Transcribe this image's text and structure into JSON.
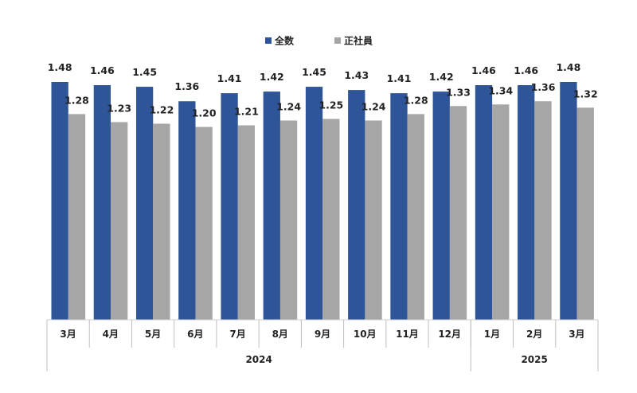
{
  "chart_data": {
    "type": "bar",
    "categories": [
      "3月",
      "4月",
      "5月",
      "6月",
      "7月",
      "8月",
      "9月",
      "10月",
      "11月",
      "12月",
      "1月",
      "2月",
      "3月"
    ],
    "year_groups": [
      {
        "label": "2024",
        "count": 10
      },
      {
        "label": "2025",
        "count": 3
      }
    ],
    "series": [
      {
        "name": "全数",
        "color": "#2E5597",
        "values": [
          1.48,
          1.46,
          1.45,
          1.36,
          1.41,
          1.42,
          1.45,
          1.43,
          1.41,
          1.42,
          1.46,
          1.46,
          1.48
        ]
      },
      {
        "name": "正社員",
        "color": "#A6A6A6",
        "values": [
          1.28,
          1.23,
          1.22,
          1.2,
          1.21,
          1.24,
          1.25,
          1.24,
          1.28,
          1.33,
          1.34,
          1.36,
          1.32
        ]
      }
    ],
    "ylim": [
      0,
      1.48
    ],
    "grid": false,
    "legend_position": "top-center",
    "title": "",
    "xlabel": "",
    "ylabel": ""
  }
}
